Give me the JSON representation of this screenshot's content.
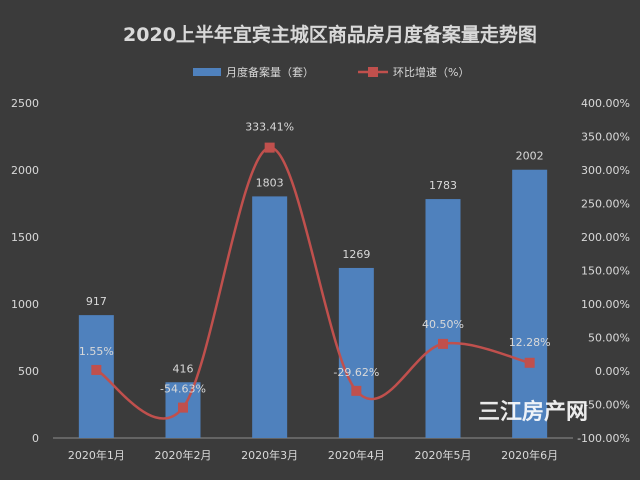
{
  "chart_data": {
    "type": "bar",
    "title": "2020上半年宜宾主城区商品房月度备案量走势图",
    "categories": [
      "2020年1月",
      "2020年2月",
      "2020年3月",
      "2020年4月",
      "2020年5月",
      "2020年6月"
    ],
    "series": [
      {
        "name": "月度备案量（套）",
        "type": "bar",
        "axis": "left",
        "values": [
          917,
          416,
          1803,
          1269,
          1783,
          2002
        ],
        "labels": [
          "917",
          "416",
          "1803",
          "1269",
          "1783",
          "2002"
        ],
        "color": "#4f81bd"
      },
      {
        "name": "环比增速（%）",
        "type": "line",
        "axis": "right",
        "smooth": true,
        "marker": "square",
        "values": [
          1.55,
          -54.63,
          333.41,
          -29.62,
          40.5,
          12.28
        ],
        "labels": [
          "1.55%",
          "-54.63%",
          "333.41%",
          "-29.62%",
          "40.50%",
          "12.28%"
        ],
        "color": "#c0504d"
      }
    ],
    "y_left": {
      "range": [
        0,
        2500
      ],
      "ticks": [
        0,
        500,
        1000,
        1500,
        2000,
        2500
      ],
      "tick_labels": [
        "0",
        "500",
        "1000",
        "1500",
        "2000",
        "2500"
      ]
    },
    "y_right": {
      "range": [
        -100,
        400
      ],
      "ticks": [
        -100,
        -50,
        0,
        50,
        100,
        150,
        200,
        250,
        300,
        350,
        400
      ],
      "tick_labels": [
        "-100.00%",
        "-50.00%",
        "0.00%",
        "50.00%",
        "100.00%",
        "150.00%",
        "200.00%",
        "250.00%",
        "300.00%",
        "350.00%",
        "400.00%"
      ]
    },
    "legend_position": "top",
    "grid": false
  },
  "watermark": "三江房产网",
  "colors": {
    "background": "#3b3b3b",
    "text": "#d9d9d9",
    "axis": "#8c8c8c"
  }
}
